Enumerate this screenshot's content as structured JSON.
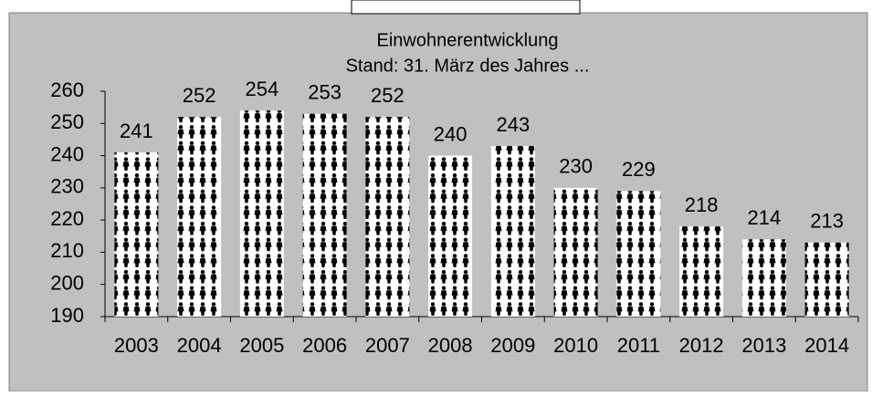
{
  "chart_data": {
    "type": "bar",
    "title": "Einwohnerentwicklung",
    "subtitle": "Stand: 31. März des Jahres ...",
    "categories": [
      "2003",
      "2004",
      "2005",
      "2006",
      "2007",
      "2008",
      "2009",
      "2010",
      "2011",
      "2012",
      "2013",
      "2014"
    ],
    "values": [
      241,
      252,
      254,
      253,
      252,
      240,
      243,
      230,
      229,
      218,
      214,
      213
    ],
    "ylim": [
      190,
      260
    ],
    "yticks": [
      190,
      200,
      210,
      220,
      230,
      240,
      250,
      260
    ],
    "grid": false
  }
}
